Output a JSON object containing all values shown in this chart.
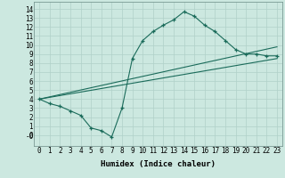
{
  "xlabel": "Humidex (Indice chaleur)",
  "xlim": [
    -0.5,
    23.5
  ],
  "ylim": [
    -1.2,
    14.8
  ],
  "xticks": [
    0,
    1,
    2,
    3,
    4,
    5,
    6,
    7,
    8,
    9,
    10,
    11,
    12,
    13,
    14,
    15,
    16,
    17,
    18,
    19,
    20,
    21,
    22,
    23
  ],
  "yticks": [
    0,
    1,
    2,
    3,
    4,
    5,
    6,
    7,
    8,
    9,
    10,
    11,
    12,
    13,
    14
  ],
  "yticklabels": [
    "0",
    "1",
    "2",
    "3",
    "4",
    "5",
    "6",
    "7",
    "8",
    "9",
    "10",
    "11",
    "12",
    "13",
    "14"
  ],
  "bg_color": "#cce8e0",
  "line_color": "#1a6b5a",
  "line1_x": [
    0,
    1,
    2,
    3,
    4,
    5,
    6,
    7,
    8,
    9,
    10,
    11,
    12,
    13,
    14,
    15,
    16,
    17,
    18,
    19,
    20,
    21,
    22,
    23
  ],
  "line1_y": [
    4.0,
    3.5,
    3.2,
    2.7,
    2.2,
    0.8,
    0.5,
    -0.2,
    3.0,
    8.5,
    10.5,
    11.5,
    12.2,
    12.8,
    13.7,
    13.2,
    12.2,
    11.5,
    10.5,
    9.5,
    9.0,
    9.0,
    8.8,
    8.8
  ],
  "line2_x": [
    0,
    23
  ],
  "line2_y": [
    4.0,
    9.8
  ],
  "line3_x": [
    0,
    23
  ],
  "line3_y": [
    4.0,
    8.5
  ],
  "grid_color": "#b0d0c8",
  "spine_color": "#7a9a94"
}
